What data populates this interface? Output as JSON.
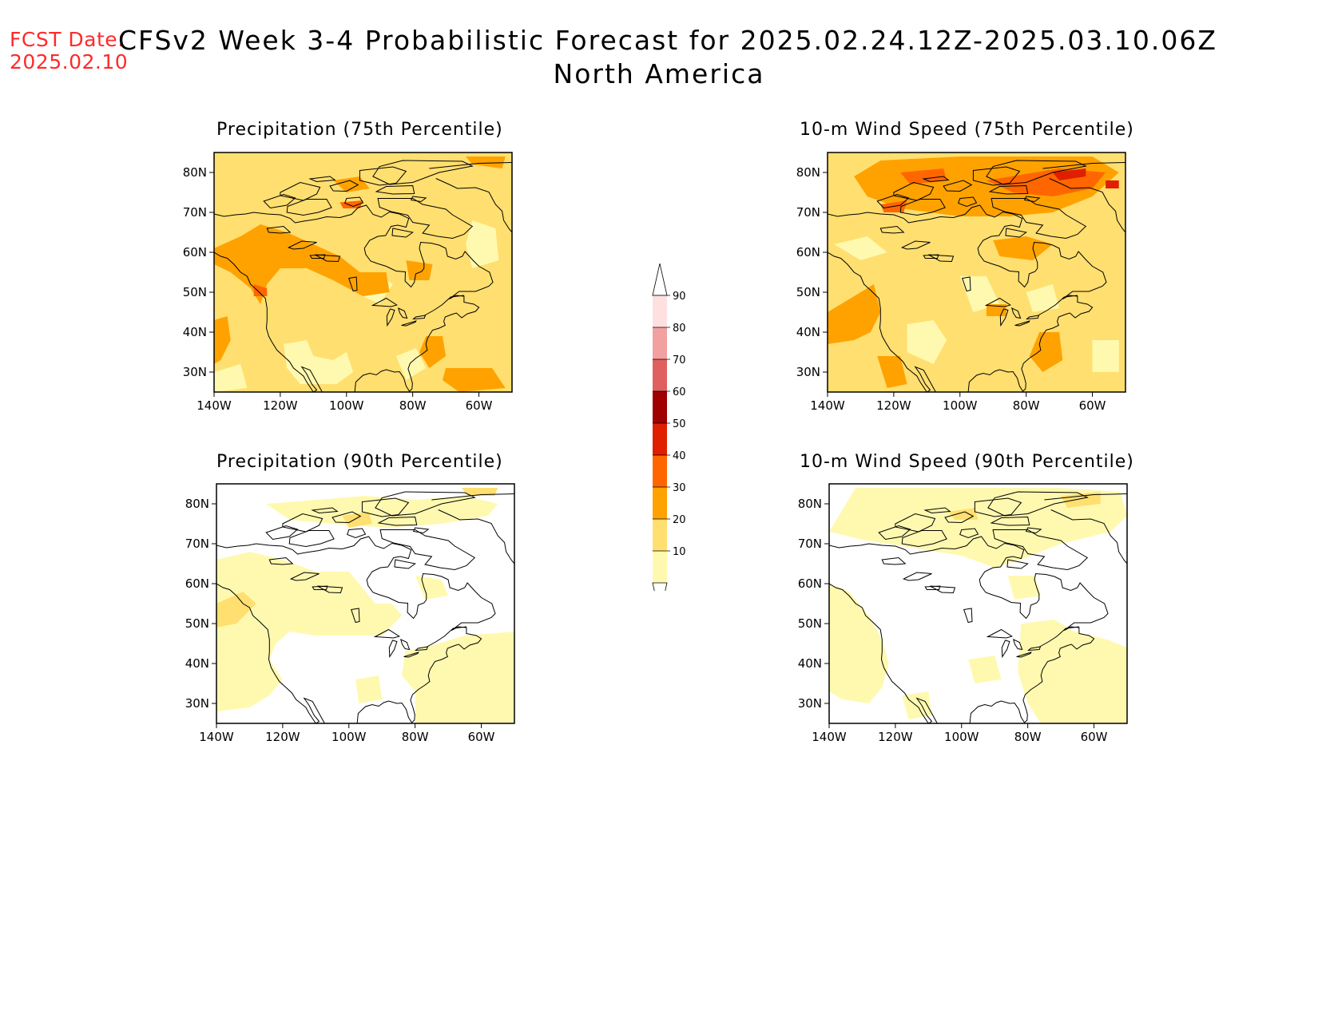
{
  "header": {
    "fcst_label": "FCST Date:",
    "fcst_date": "2025.02.10",
    "title_line1": "CFSv2 Week 3-4 Probabilistic Forecast for 2025.02.24.12Z-2025.03.10.06Z",
    "title_line2": "North America"
  },
  "panels": [
    {
      "id": "precip75",
      "title": "Precipitation (75th Percentile)",
      "level": 2
    },
    {
      "id": "wind75",
      "title": "10-m Wind Speed (75th Percentile)",
      "level": 3
    },
    {
      "id": "precip90",
      "title": "Precipitation (90th Percentile)",
      "level": 0
    },
    {
      "id": "wind90",
      "title": "10-m Wind Speed (90th Percentile)",
      "level": 1
    }
  ],
  "axes": {
    "lat_ticks": [
      "80N",
      "70N",
      "60N",
      "50N",
      "40N",
      "30N"
    ],
    "lon_ticks": [
      "140W",
      "120W",
      "100W",
      "80W",
      "60W"
    ],
    "lat_range": [
      25,
      85
    ],
    "lon_range": [
      -140,
      -50
    ]
  },
  "colorbar": {
    "labels": [
      "90",
      "80",
      "70",
      "60",
      "50",
      "40",
      "30",
      "20",
      "10"
    ],
    "colors": [
      "#ffe0e0",
      "#f2a0a0",
      "#e06060",
      "#a00000",
      "#e01e00",
      "#ff6600",
      "#ffa200",
      "#ffdf70",
      "#fff9b0"
    ]
  }
}
